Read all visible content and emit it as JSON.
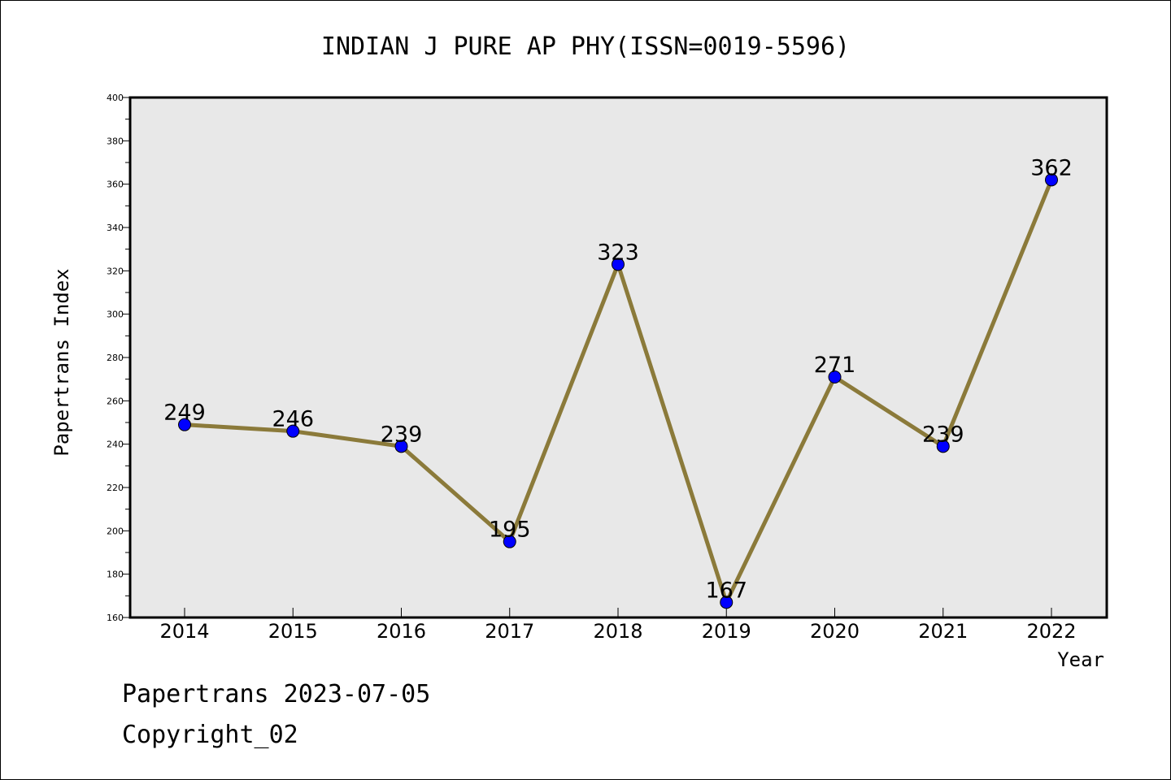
{
  "chart_data": {
    "type": "line",
    "title": "INDIAN J PURE AP PHY(ISSN=0019-5596)",
    "xlabel": "Year",
    "ylabel": "Papertrans Index",
    "categories": [
      "2014",
      "2015",
      "2016",
      "2017",
      "2018",
      "2019",
      "2020",
      "2021",
      "2022"
    ],
    "values": [
      249,
      246,
      239,
      195,
      323,
      167,
      271,
      239,
      362
    ],
    "data_labels": [
      "249",
      "246",
      "239",
      "195",
      "323",
      "167",
      "271",
      "239",
      "362"
    ],
    "ylim": [
      160,
      400
    ],
    "yticks": [
      "160",
      "180",
      "200",
      "220",
      "240",
      "260",
      "280",
      "300",
      "320",
      "340",
      "360",
      "380",
      "400"
    ],
    "line_color": "#8b7a3a",
    "marker_color": "#0000ff",
    "plot_background": "#e8e8e8",
    "grid": false,
    "legend": "none"
  },
  "footer": {
    "line1": "Papertrans 2023-07-05",
    "line2": "Copyright_02"
  }
}
